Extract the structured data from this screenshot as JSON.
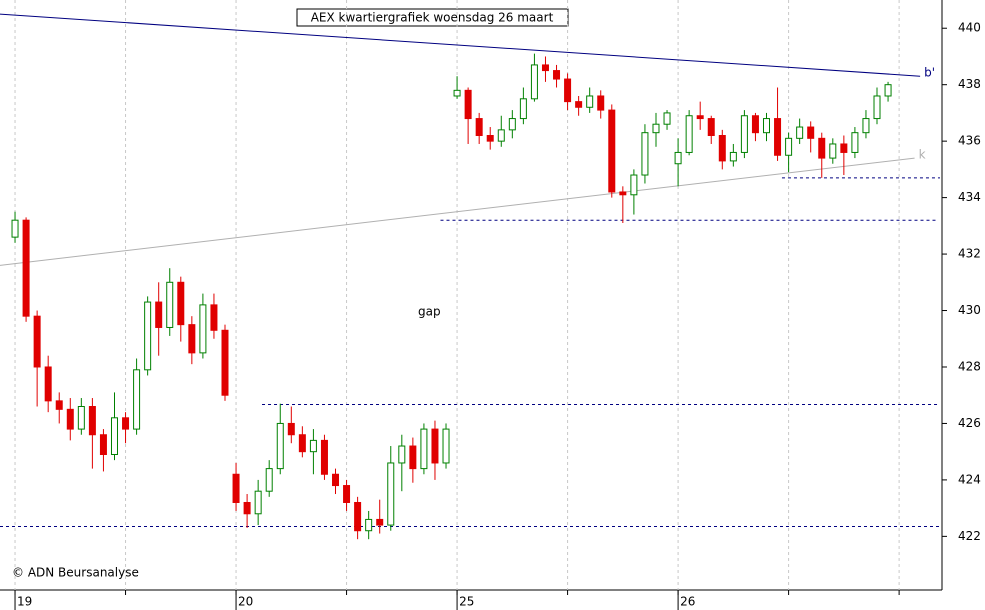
{
  "chart_data": {
    "type": "candlestick",
    "title": "AEX kwartiergrafiek woensdag 26 maart",
    "credit": "© ADN Beursanalyse",
    "annotation": "gap",
    "x": [
      0,
      1,
      2,
      3,
      4,
      5,
      6,
      7,
      8,
      9,
      10,
      11,
      12,
      13,
      14,
      15,
      16,
      17,
      18,
      19,
      20,
      21,
      22,
      23,
      24,
      25,
      26,
      27,
      28,
      29,
      30,
      31,
      32,
      33,
      34,
      35,
      36,
      37,
      38,
      39,
      40,
      41,
      42,
      43,
      44,
      45,
      46,
      47,
      48,
      49,
      50,
      51,
      52,
      53,
      54,
      55,
      56,
      57,
      58,
      59,
      60,
      61,
      62,
      63,
      64,
      65,
      66,
      67,
      68,
      69,
      70,
      71,
      72,
      73,
      74,
      75,
      76,
      77,
      78,
      79
    ],
    "open": [
      432.6,
      433.2,
      429.8,
      428.0,
      426.8,
      426.5,
      425.8,
      426.6,
      425.6,
      424.9,
      426.2,
      425.8,
      427.9,
      430.3,
      429.4,
      431.0,
      429.5,
      428.5,
      430.2,
      429.3,
      424.2,
      423.2,
      422.8,
      423.6,
      424.4,
      426.0,
      425.6,
      425.0,
      425.4,
      424.2,
      423.8,
      423.2,
      422.2,
      422.6,
      422.4,
      424.6,
      425.2,
      424.4,
      425.8,
      424.6,
      437.6,
      437.8,
      436.8,
      436.2,
      436.0,
      436.4,
      436.8,
      437.5,
      438.7,
      438.5,
      438.2,
      437.4,
      437.2,
      437.6,
      437.1,
      434.2,
      434.1,
      434.8,
      436.3,
      436.6,
      435.2,
      435.6,
      436.9,
      436.8,
      436.2,
      435.3,
      435.6,
      436.9,
      436.3,
      436.8,
      435.5,
      436.1,
      436.5,
      436.1,
      435.4,
      435.9,
      435.6,
      436.3,
      436.8,
      437.6
    ],
    "high": [
      433.5,
      433.3,
      430.0,
      428.4,
      427.1,
      426.9,
      426.9,
      426.9,
      425.8,
      427.1,
      426.4,
      428.3,
      430.5,
      431.0,
      431.5,
      431.2,
      429.8,
      430.6,
      430.6,
      429.5,
      424.6,
      423.5,
      424.0,
      424.7,
      426.7,
      426.6,
      425.9,
      425.8,
      425.6,
      424.4,
      424.0,
      423.4,
      422.9,
      423.3,
      425.2,
      425.6,
      425.5,
      426.0,
      426.1,
      426.0,
      438.3,
      437.9,
      437.0,
      436.5,
      436.9,
      437.1,
      437.9,
      439.1,
      439.0,
      438.7,
      438.4,
      437.6,
      437.9,
      437.8,
      437.3,
      434.4,
      435.0,
      436.6,
      437.0,
      437.1,
      436.1,
      437.1,
      437.4,
      436.9,
      436.4,
      435.9,
      437.1,
      437.0,
      437.0,
      437.9,
      436.3,
      436.8,
      436.7,
      436.3,
      436.1,
      436.2,
      436.5,
      437.1,
      437.9,
      438.1
    ],
    "low": [
      432.4,
      429.6,
      426.6,
      426.4,
      426.0,
      425.4,
      425.6,
      424.4,
      424.3,
      424.7,
      425.3,
      425.6,
      427.7,
      428.4,
      429.1,
      428.9,
      428.1,
      428.3,
      429.0,
      426.8,
      422.9,
      422.3,
      422.4,
      423.4,
      424.2,
      425.3,
      424.8,
      424.2,
      424.0,
      423.5,
      422.9,
      421.9,
      421.9,
      422.1,
      422.2,
      423.6,
      423.9,
      424.2,
      424.0,
      424.4,
      437.5,
      435.9,
      435.9,
      435.7,
      435.8,
      436.1,
      436.6,
      437.4,
      438.1,
      437.9,
      437.1,
      436.9,
      437.0,
      436.8,
      434.0,
      433.1,
      433.4,
      434.5,
      435.8,
      436.4,
      434.4,
      435.5,
      436.4,
      435.9,
      435.0,
      435.1,
      435.4,
      436.0,
      436.0,
      435.3,
      434.9,
      435.9,
      435.6,
      434.7,
      435.2,
      434.8,
      435.4,
      436.1,
      436.6,
      437.4
    ],
    "close": [
      433.2,
      429.8,
      428.0,
      426.8,
      426.5,
      425.8,
      426.6,
      425.6,
      424.9,
      426.2,
      425.8,
      427.9,
      430.3,
      429.4,
      431.0,
      429.5,
      428.5,
      430.2,
      429.3,
      427.0,
      423.2,
      422.8,
      423.6,
      424.4,
      426.0,
      425.6,
      425.0,
      425.4,
      424.2,
      423.8,
      423.2,
      422.2,
      422.6,
      422.4,
      424.6,
      425.2,
      424.4,
      425.8,
      424.6,
      425.8,
      437.8,
      436.8,
      436.2,
      436.0,
      436.4,
      436.8,
      437.5,
      438.7,
      438.5,
      438.2,
      437.4,
      437.2,
      437.6,
      437.1,
      434.2,
      434.1,
      434.8,
      436.3,
      436.6,
      437.0,
      435.6,
      436.9,
      436.8,
      436.2,
      435.3,
      435.6,
      436.9,
      436.3,
      436.8,
      435.5,
      436.1,
      436.5,
      436.1,
      435.4,
      435.9,
      435.6,
      436.3,
      436.8,
      437.6,
      438.0
    ],
    "up_color": "#008000",
    "down_color": "#e00000",
    "lines": [
      {
        "name": "b'",
        "x": [
          -1.36,
          81.9
        ],
        "values": [
          440.5,
          438.3
        ],
        "color": "#000080"
      },
      {
        "name": "k",
        "x": [
          -1.36,
          81.4
        ],
        "values": [
          431.6,
          435.4
        ],
        "color": "#b0b0b0"
      }
    ],
    "hlines": [
      {
        "value": 422.35,
        "x": [
          -1.36,
          83.7
        ]
      },
      {
        "value": 426.67,
        "x": [
          22.35,
          83.7
        ]
      },
      {
        "value": 433.2,
        "x": [
          38.5,
          83.3
        ]
      },
      {
        "value": 434.7,
        "x": [
          69.4,
          83.7
        ]
      }
    ],
    "hline_color": "#000080",
    "xlim": [
      -1.36,
      83.7
    ],
    "xticks": [
      {
        "value": 0,
        "label": "19"
      },
      {
        "value": 20,
        "label": "20"
      },
      {
        "value": 40,
        "label": "25"
      },
      {
        "value": 60,
        "label": "26"
      }
    ],
    "xgrid": [
      0,
      10,
      20,
      30,
      40,
      50,
      60,
      70,
      80
    ],
    "ylim": [
      420.1,
      441
    ],
    "yticks": [
      422,
      424,
      426,
      428,
      430,
      432,
      434,
      436,
      438,
      440
    ]
  }
}
